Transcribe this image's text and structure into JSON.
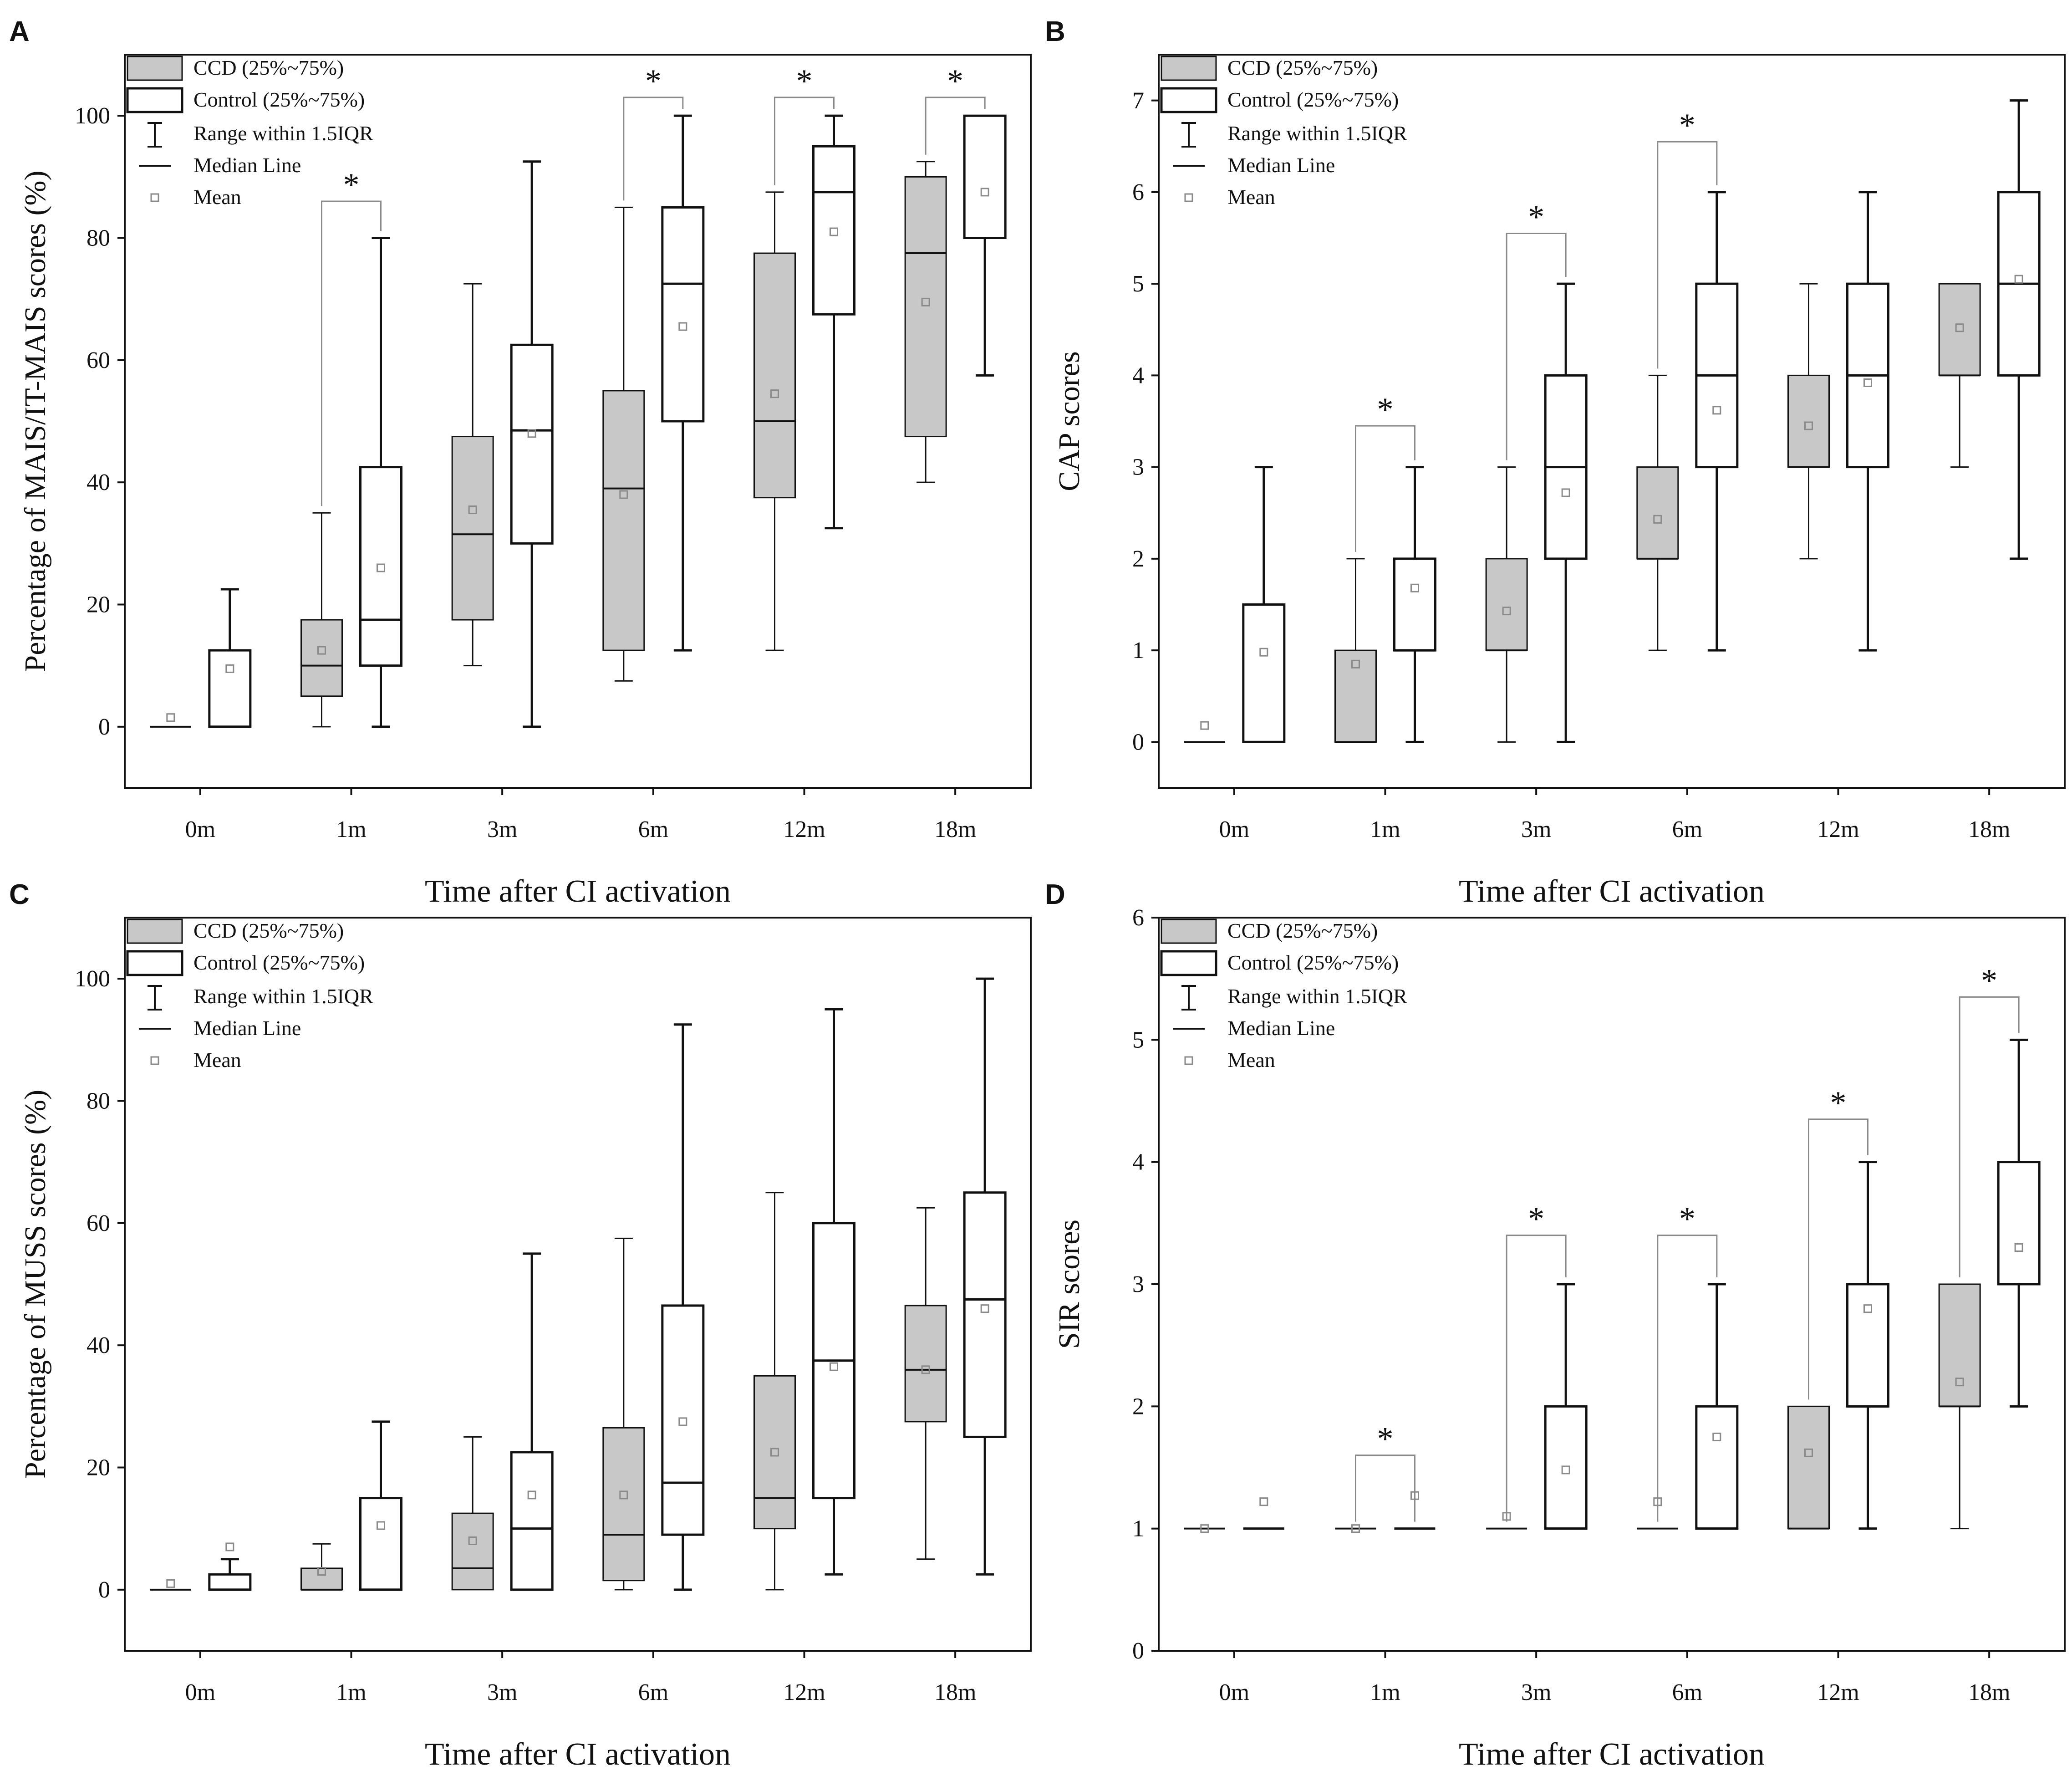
{
  "figure": {
    "colors": {
      "ccd_fill": "#c8c8c8",
      "control_fill": "#ffffff",
      "stroke": "#111111",
      "mean_marker": "#8a8a8a",
      "bracket": "#8a8a8a",
      "background": "#ffffff"
    }
  },
  "chart_data": [
    {
      "panel_label": "A",
      "type": "box",
      "xlabel": "Time after CI activation",
      "ylabel": "Percentage of MAIS/IT-MAIS scores (%)",
      "ylim": [
        -10,
        110
      ],
      "yticks": [
        0,
        20,
        40,
        60,
        80,
        100
      ],
      "categories": [
        "0m",
        "1m",
        "3m",
        "6m",
        "12m",
        "18m"
      ],
      "legend": {
        "ccd": "CCD (25%~75%)",
        "control": "Control (25%~75%)",
        "range": "Range within 1.5IQR",
        "median": "Median Line",
        "mean": "Mean"
      },
      "series": [
        {
          "name": "CCD",
          "boxes": [
            {
              "min": 0,
              "q1": 0,
              "median": 0,
              "q3": 0,
              "max": 0,
              "mean": 1.5
            },
            {
              "min": 0,
              "q1": 5,
              "median": 10,
              "q3": 17.5,
              "max": 35,
              "mean": 12.5
            },
            {
              "min": 10,
              "q1": 17.5,
              "median": 31.5,
              "q3": 47.5,
              "max": 72.5,
              "mean": 35.5
            },
            {
              "min": 7.5,
              "q1": 12.5,
              "median": 39,
              "q3": 55,
              "max": 85,
              "mean": 38
            },
            {
              "min": 12.5,
              "q1": 37.5,
              "median": 50,
              "q3": 77.5,
              "max": 87.5,
              "mean": 54.5
            },
            {
              "min": 40,
              "q1": 47.5,
              "median": 77.5,
              "q3": 90,
              "max": 92.5,
              "mean": 69.5
            }
          ]
        },
        {
          "name": "Control",
          "boxes": [
            {
              "min": 0,
              "q1": 0,
              "median": 0,
              "q3": 12.5,
              "max": 22.5,
              "mean": 9.5
            },
            {
              "min": 0,
              "q1": 10,
              "median": 17.5,
              "q3": 42.5,
              "max": 80,
              "mean": 26
            },
            {
              "min": 0,
              "q1": 30,
              "median": 48.5,
              "q3": 62.5,
              "max": 92.5,
              "mean": 48
            },
            {
              "min": 12.5,
              "q1": 50,
              "median": 72.5,
              "q3": 85,
              "max": 100,
              "mean": 65.5
            },
            {
              "min": 32.5,
              "q1": 67.5,
              "median": 87.5,
              "q3": 95,
              "max": 100,
              "mean": 81
            },
            {
              "min": 57.5,
              "q1": 80,
              "median": 80,
              "q3": 100,
              "max": 100,
              "mean": 87.5
            }
          ]
        }
      ],
      "significance": [
        {
          "category": "1m",
          "label": "*",
          "level": 86
        },
        {
          "category": "6m",
          "label": "*",
          "level": 103
        },
        {
          "category": "12m",
          "label": "*",
          "level": 103
        },
        {
          "category": "18m",
          "label": "*",
          "level": 103
        }
      ]
    },
    {
      "panel_label": "B",
      "type": "box",
      "xlabel": "Time after CI activation",
      "ylabel": "CAP scores",
      "ylim": [
        -0.5,
        7.5
      ],
      "yticks": [
        0,
        1,
        2,
        3,
        4,
        5,
        6,
        7
      ],
      "categories": [
        "0m",
        "1m",
        "3m",
        "6m",
        "12m",
        "18m"
      ],
      "legend": {
        "ccd": "CCD (25%~75%)",
        "control": "Control (25%~75%)",
        "range": "Range within 1.5IQR",
        "median": "Median Line",
        "mean": "Mean"
      },
      "series": [
        {
          "name": "CCD",
          "boxes": [
            {
              "min": 0,
              "q1": 0,
              "median": 0,
              "q3": 0,
              "max": 0,
              "mean": 0.18
            },
            {
              "min": 0,
              "q1": 0,
              "median": 0,
              "q3": 1,
              "max": 2,
              "mean": 0.85
            },
            {
              "min": 0,
              "q1": 1,
              "median": 1,
              "q3": 2,
              "max": 3,
              "mean": 1.43
            },
            {
              "min": 1,
              "q1": 2,
              "median": 2,
              "q3": 3,
              "max": 4,
              "mean": 2.43
            },
            {
              "min": 2,
              "q1": 3,
              "median": 3,
              "q3": 4,
              "max": 5,
              "mean": 3.45
            },
            {
              "min": 3,
              "q1": 4,
              "median": 4,
              "q3": 5,
              "max": 5,
              "mean": 4.52
            }
          ]
        },
        {
          "name": "Control",
          "boxes": [
            {
              "min": 0,
              "q1": 0,
              "median": 0,
              "q3": 1.5,
              "max": 3,
              "mean": 0.98
            },
            {
              "min": 0,
              "q1": 1,
              "median": 1,
              "q3": 2,
              "max": 3,
              "mean": 1.68
            },
            {
              "min": 0,
              "q1": 2,
              "median": 3,
              "q3": 4,
              "max": 5,
              "mean": 2.72
            },
            {
              "min": 1,
              "q1": 3,
              "median": 4,
              "q3": 5,
              "max": 6,
              "mean": 3.62
            },
            {
              "min": 1,
              "q1": 3,
              "median": 4,
              "q3": 5,
              "max": 6,
              "mean": 3.92
            },
            {
              "min": 2,
              "q1": 4,
              "median": 5,
              "q3": 6,
              "max": 7,
              "mean": 5.05
            }
          ]
        }
      ],
      "significance": [
        {
          "category": "1m",
          "label": "*",
          "level": 3.45
        },
        {
          "category": "3m",
          "label": "*",
          "level": 5.55
        },
        {
          "category": "6m",
          "label": "*",
          "level": 6.55
        }
      ]
    },
    {
      "panel_label": "C",
      "type": "box",
      "xlabel": "Time after CI activation",
      "ylabel": "Percentage of MUSS scores (%)",
      "ylim": [
        -10,
        110
      ],
      "yticks": [
        0,
        20,
        40,
        60,
        80,
        100
      ],
      "categories": [
        "0m",
        "1m",
        "3m",
        "6m",
        "12m",
        "18m"
      ],
      "legend": {
        "ccd": "CCD (25%~75%)",
        "control": "Control (25%~75%)",
        "range": "Range within 1.5IQR",
        "median": "Median Line",
        "mean": "Mean"
      },
      "series": [
        {
          "name": "CCD",
          "boxes": [
            {
              "min": 0,
              "q1": 0,
              "median": 0,
              "q3": 0,
              "max": 0,
              "mean": 1
            },
            {
              "min": 0,
              "q1": 0,
              "median": 0,
              "q3": 3.5,
              "max": 7.5,
              "mean": 3
            },
            {
              "min": 0,
              "q1": 0,
              "median": 3.5,
              "q3": 12.5,
              "max": 25,
              "mean": 8
            },
            {
              "min": 0,
              "q1": 1.5,
              "median": 9,
              "q3": 26.5,
              "max": 57.5,
              "mean": 15.5
            },
            {
              "min": 0,
              "q1": 10,
              "median": 15,
              "q3": 35,
              "max": 65,
              "mean": 22.5
            },
            {
              "min": 5,
              "q1": 27.5,
              "median": 36,
              "q3": 46.5,
              "max": 62.5,
              "mean": 36
            }
          ]
        },
        {
          "name": "Control",
          "boxes": [
            {
              "min": 0,
              "q1": 0,
              "median": 0,
              "q3": 2.5,
              "max": 5,
              "mean": 7
            },
            {
              "min": 0,
              "q1": 0,
              "median": 0,
              "q3": 15,
              "max": 27.5,
              "mean": 10.5
            },
            {
              "min": 0,
              "q1": 0,
              "median": 10,
              "q3": 22.5,
              "max": 55,
              "mean": 15.5
            },
            {
              "min": 0,
              "q1": 9,
              "median": 17.5,
              "q3": 46.5,
              "max": 92.5,
              "mean": 27.5
            },
            {
              "min": 2.5,
              "q1": 15,
              "median": 37.5,
              "q3": 60,
              "max": 95,
              "mean": 36.5
            },
            {
              "min": 2.5,
              "q1": 25,
              "median": 47.5,
              "q3": 65,
              "max": 100,
              "mean": 46
            }
          ]
        }
      ],
      "significance": []
    },
    {
      "panel_label": "D",
      "type": "box",
      "xlabel": "Time after CI activation",
      "ylabel": "SIR scores",
      "ylim": [
        0,
        6
      ],
      "yticks": [
        0,
        1,
        2,
        3,
        4,
        5,
        6
      ],
      "categories": [
        "0m",
        "1m",
        "3m",
        "6m",
        "12m",
        "18m"
      ],
      "legend": {
        "ccd": "CCD (25%~75%)",
        "control": "Control (25%~75%)",
        "range": "Range within 1.5IQR",
        "median": "Median Line",
        "mean": "Mean"
      },
      "series": [
        {
          "name": "CCD",
          "boxes": [
            {
              "min": 1,
              "q1": 1,
              "median": 1,
              "q3": 1,
              "max": 1,
              "mean": 1
            },
            {
              "min": 1,
              "q1": 1,
              "median": 1,
              "q3": 1,
              "max": 1,
              "mean": 1
            },
            {
              "min": 1,
              "q1": 1,
              "median": 1,
              "q3": 1,
              "max": 1,
              "mean": 1.1
            },
            {
              "min": 1,
              "q1": 1,
              "median": 1,
              "q3": 1,
              "max": 1,
              "mean": 1.22
            },
            {
              "min": 1,
              "q1": 1,
              "median": 1,
              "q3": 2,
              "max": 2,
              "mean": 1.62
            },
            {
              "min": 1,
              "q1": 2,
              "median": 2,
              "q3": 3,
              "max": 3,
              "mean": 2.2
            }
          ]
        },
        {
          "name": "Control",
          "boxes": [
            {
              "min": 1,
              "q1": 1,
              "median": 1,
              "q3": 1,
              "max": 1,
              "mean": 1.22
            },
            {
              "min": 1,
              "q1": 1,
              "median": 1,
              "q3": 1,
              "max": 1,
              "mean": 1.27
            },
            {
              "min": 1,
              "q1": 1,
              "median": 1,
              "q3": 2,
              "max": 3,
              "mean": 1.48
            },
            {
              "min": 1,
              "q1": 1,
              "median": 1,
              "q3": 2,
              "max": 3,
              "mean": 1.75
            },
            {
              "min": 1,
              "q1": 2,
              "median": 2,
              "q3": 3,
              "max": 4,
              "mean": 2.8
            },
            {
              "min": 2,
              "q1": 3,
              "median": 3,
              "q3": 4,
              "max": 5,
              "mean": 3.3
            }
          ]
        }
      ],
      "significance": [
        {
          "category": "1m",
          "label": "*",
          "level": 1.6
        },
        {
          "category": "3m",
          "label": "*",
          "level": 3.4
        },
        {
          "category": "6m",
          "label": "*",
          "level": 3.4
        },
        {
          "category": "12m",
          "label": "*",
          "level": 4.35
        },
        {
          "category": "18m",
          "label": "*",
          "level": 5.35
        }
      ]
    }
  ]
}
